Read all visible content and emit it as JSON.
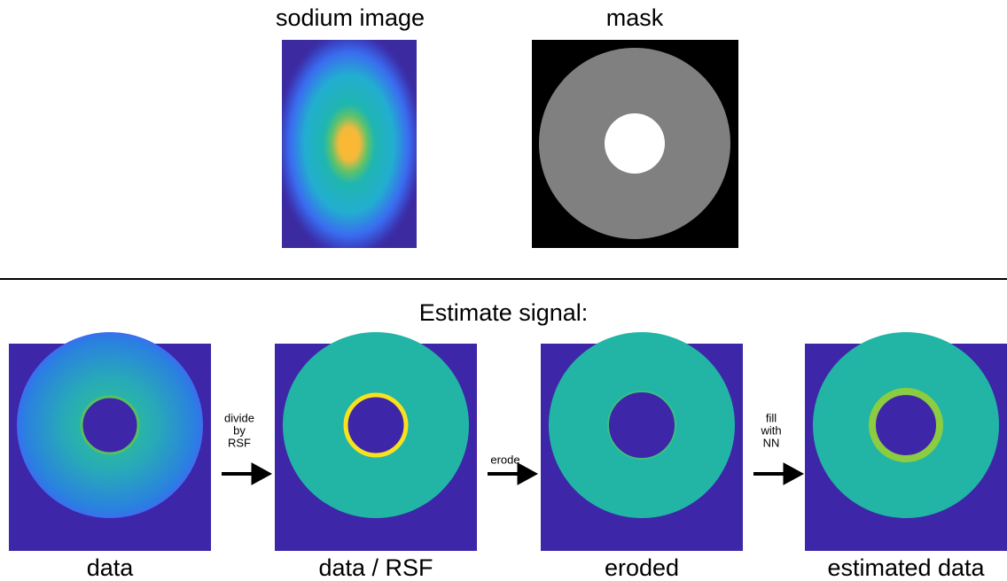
{
  "top_panels": [
    {
      "title": "sodium image"
    },
    {
      "title": "mask"
    }
  ],
  "section_title": "Estimate signal:",
  "steps": [
    {
      "label": "data"
    },
    {
      "label": "data / RSF"
    },
    {
      "label": "eroded"
    },
    {
      "label": "estimated data"
    }
  ],
  "arrows": [
    {
      "lines": [
        "divide",
        "by",
        "RSF"
      ]
    },
    {
      "lines": [
        "erode"
      ]
    },
    {
      "lines": [
        "fill",
        "with",
        "NN"
      ]
    }
  ]
}
